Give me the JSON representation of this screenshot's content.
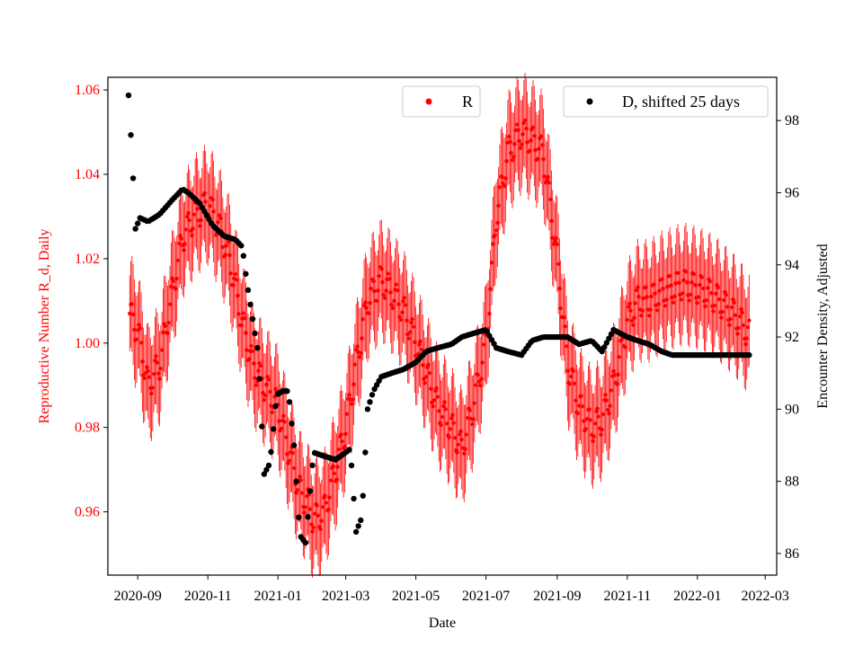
{
  "chart_data": {
    "type": "scatter",
    "xlabel": "Date",
    "ylabel_left": "Reproductive Number R_d, Daily",
    "ylabel_right": "Encounter Density, Adjusted",
    "x_ticks": [
      "2020-09",
      "2020-11",
      "2021-01",
      "2021-03",
      "2021-05",
      "2021-07",
      "2021-09",
      "2021-11",
      "2022-01",
      "2022-03"
    ],
    "y_left_ticks": [
      "0.96",
      "0.98",
      "1.00",
      "1.02",
      "1.04",
      "1.06"
    ],
    "y_right_ticks": [
      "86",
      "88",
      "90",
      "92",
      "94",
      "96",
      "98"
    ],
    "xlim": [
      "2020-08-06",
      "2022-03-11"
    ],
    "ylim_left": [
      0.945,
      1.063
    ],
    "ylim_right": [
      85.4,
      99.2
    ],
    "legend": [
      {
        "label": "R",
        "color": "#ff0000",
        "position": "top-center"
      },
      {
        "label": "D, shifted 25 days",
        "color": "#000000",
        "position": "top-right"
      }
    ],
    "series": [
      {
        "name": "R",
        "axis": "left",
        "color": "#ff0000",
        "errorbar_halfwidth": 0.012,
        "dates": [
          "2020-08-25",
          "2020-09-01",
          "2020-09-10",
          "2020-09-20",
          "2020-10-01",
          "2020-10-10",
          "2020-10-20",
          "2020-11-01",
          "2020-11-10",
          "2020-11-20",
          "2020-12-01",
          "2020-12-10",
          "2020-12-20",
          "2021-01-01",
          "2021-01-10",
          "2021-01-20",
          "2021-01-27",
          "2021-02-01",
          "2021-02-10",
          "2021-02-20",
          "2021-03-01",
          "2021-03-10",
          "2021-03-20",
          "2021-04-01",
          "2021-04-10",
          "2021-04-20",
          "2021-05-01",
          "2021-05-10",
          "2021-05-20",
          "2021-06-01",
          "2021-06-10",
          "2021-06-20",
          "2021-07-01",
          "2021-07-10",
          "2021-07-20",
          "2021-08-01",
          "2021-08-10",
          "2021-08-20",
          "2021-09-01",
          "2021-09-10",
          "2021-09-20",
          "2021-10-01",
          "2021-10-10",
          "2021-10-20",
          "2021-11-01",
          "2021-11-10",
          "2021-11-20",
          "2021-12-01",
          "2021-12-10",
          "2021-12-20",
          "2022-01-01",
          "2022-01-10",
          "2022-01-20",
          "2022-02-01",
          "2022-02-10",
          "2022-02-15"
        ],
        "values": [
          1.007,
          1.003,
          0.99,
          0.995,
          1.012,
          1.025,
          1.03,
          1.033,
          1.028,
          1.02,
          1.005,
          0.995,
          0.99,
          0.985,
          0.975,
          0.965,
          0.962,
          0.958,
          0.96,
          0.97,
          0.98,
          0.995,
          1.01,
          1.015,
          1.012,
          1.008,
          1.0,
          0.993,
          0.985,
          0.98,
          0.975,
          0.985,
          1.0,
          1.03,
          1.045,
          1.05,
          1.048,
          1.045,
          1.02,
          0.995,
          0.985,
          0.98,
          0.982,
          0.99,
          1.005,
          1.01,
          1.01,
          1.012,
          1.013,
          1.014,
          1.013,
          1.012,
          1.01,
          1.007,
          1.004,
          1.002
        ]
      },
      {
        "name": "D, shifted 25 days",
        "axis": "right",
        "color": "#000000",
        "dates": [
          "2020-08-24",
          "2020-08-26",
          "2020-08-28",
          "2020-08-30",
          "2020-09-03",
          "2020-09-10",
          "2020-09-20",
          "2020-10-01",
          "2020-10-10",
          "2020-10-15",
          "2020-10-25",
          "2020-11-05",
          "2020-11-15",
          "2020-11-25",
          "2020-12-01",
          "2020-12-05",
          "2020-12-10",
          "2020-12-15",
          "2020-12-20",
          "2020-12-25",
          "2020-12-31",
          "2021-01-05",
          "2021-01-10",
          "2021-01-15",
          "2021-01-20",
          "2021-01-25",
          "2021-02-01",
          "2021-02-10",
          "2021-02-20",
          "2021-03-01",
          "2021-03-05",
          "2021-03-10",
          "2021-03-15",
          "2021-03-20",
          "2021-03-25",
          "2021-04-01",
          "2021-04-10",
          "2021-04-20",
          "2021-05-01",
          "2021-05-10",
          "2021-05-20",
          "2021-06-01",
          "2021-06-10",
          "2021-06-20",
          "2021-07-01",
          "2021-07-10",
          "2021-07-20",
          "2021-08-01",
          "2021-08-10",
          "2021-08-20",
          "2021-09-01",
          "2021-09-10",
          "2021-09-20",
          "2021-10-01",
          "2021-10-10",
          "2021-10-20",
          "2021-11-01",
          "2021-11-10",
          "2021-11-20",
          "2021-12-01",
          "2021-12-10",
          "2021-12-20",
          "2022-01-01",
          "2022-01-15",
          "2022-02-01",
          "2022-02-15"
        ],
        "values": [
          98.7,
          97.6,
          96.4,
          95.0,
          95.3,
          95.2,
          95.4,
          95.8,
          96.1,
          96.0,
          95.7,
          95.1,
          94.8,
          94.7,
          94.5,
          93.5,
          92.5,
          91.5,
          88.2,
          88.5,
          90.4,
          90.5,
          90.5,
          89.0,
          86.5,
          86.3,
          88.8,
          88.7,
          88.6,
          88.8,
          88.9,
          86.6,
          87.0,
          90.0,
          90.5,
          90.9,
          91.0,
          91.1,
          91.3,
          91.6,
          91.7,
          91.8,
          92.0,
          92.1,
          92.2,
          91.7,
          91.6,
          91.5,
          91.9,
          92.0,
          92.0,
          92.0,
          91.8,
          91.9,
          91.6,
          92.2,
          92.0,
          91.9,
          91.8,
          91.6,
          91.5,
          91.5,
          91.5,
          91.5,
          91.5,
          91.5
        ]
      }
    ]
  }
}
